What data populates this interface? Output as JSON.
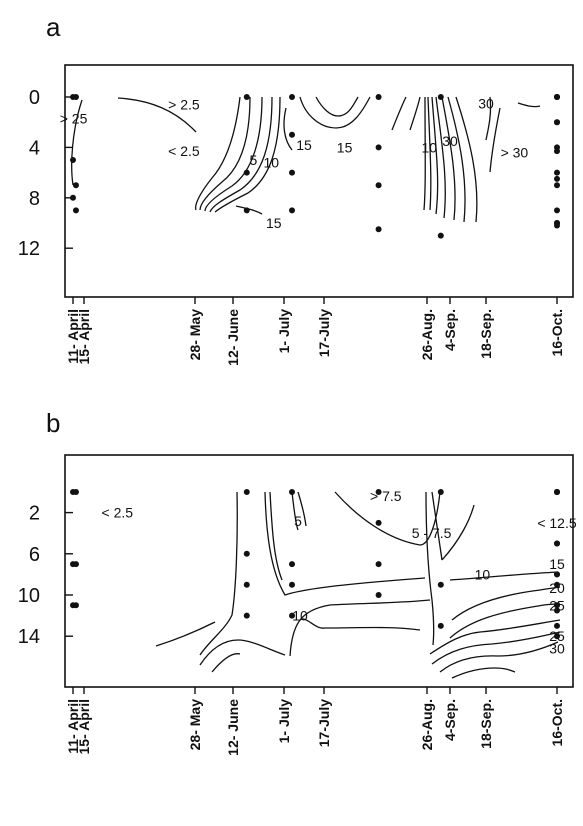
{
  "chart_data": [
    {
      "type": "contour",
      "panel_label": "a",
      "x_tick_labels": [
        "11- April",
        "15- April",
        "28- May",
        "12- June",
        "1- July",
        "17-July",
        "26-Aug.",
        "4-Sep.",
        "18-Sep.",
        "16-Oct."
      ],
      "y_ticks": [
        0,
        4,
        8,
        12
      ],
      "y_tick_labels": [
        "0",
        "4",
        "8",
        "12"
      ],
      "ylim": [
        15,
        -1.2
      ],
      "contour_labels": [
        {
          "text": "> 2.5",
          "x": 1.9,
          "y": 0.6
        },
        {
          "text": "> 25",
          "x": 0.05,
          "y": 1.7
        },
        {
          "text": "< 2.5",
          "x": 1.9,
          "y": 4.3
        },
        {
          "text": "5",
          "x": 3.4,
          "y": 5.0
        },
        {
          "text": "10",
          "x": 3.75,
          "y": 5.2
        },
        {
          "text": "15",
          "x": 4.5,
          "y": 3.8
        },
        {
          "text": "15",
          "x": 5.2,
          "y": 4.0
        },
        {
          "text": "10",
          "x": 6.1,
          "y": 4.0
        },
        {
          "text": "15",
          "x": 3.8,
          "y": 10.0
        },
        {
          "text": "30",
          "x": 8.0,
          "y": 0.5
        },
        {
          "text": "30",
          "x": 7.0,
          "y": 3.5
        },
        {
          "text": "> 30",
          "x": 8.4,
          "y": 4.4
        }
      ],
      "sampling_points": [
        {
          "x": 0,
          "y": 0
        },
        {
          "x": 0,
          "y": 5
        },
        {
          "x": 0,
          "y": 8
        },
        {
          "x": 0.27,
          "y": 0
        },
        {
          "x": 0.27,
          "y": 7
        },
        {
          "x": 0.27,
          "y": 9
        },
        {
          "x": 3.27,
          "y": 0
        },
        {
          "x": 3.27,
          "y": 6
        },
        {
          "x": 3.27,
          "y": 9
        },
        {
          "x": 4.2,
          "y": 0
        },
        {
          "x": 4.2,
          "y": 3
        },
        {
          "x": 4.2,
          "y": 6
        },
        {
          "x": 4.2,
          "y": 9
        },
        {
          "x": 5.53,
          "y": 0
        },
        {
          "x": 5.53,
          "y": 4
        },
        {
          "x": 5.53,
          "y": 7
        },
        {
          "x": 5.53,
          "y": 10.5
        },
        {
          "x": 6.6,
          "y": 0
        },
        {
          "x": 6.6,
          "y": 11
        },
        {
          "x": 9.27,
          "y": 0
        },
        {
          "x": 9.27,
          "y": 2
        },
        {
          "x": 9.27,
          "y": 6
        },
        {
          "x": 9.27,
          "y": 9
        },
        {
          "x": 9.87,
          "y": 0
        },
        {
          "x": 9.87,
          "y": 4
        },
        {
          "x": 9.87,
          "y": 7
        },
        {
          "x": 9.87,
          "y": 10
        },
        {
          "x": 10.8,
          "y": 0
        },
        {
          "x": 10.8,
          "y": 2
        },
        {
          "x": 10.8,
          "y": 6.5
        },
        {
          "x": 10.8,
          "y": 10
        },
        {
          "x": 12.8,
          "y": 0
        },
        {
          "x": 12.8,
          "y": 4.3
        },
        {
          "x": 12.8,
          "y": 10.2
        }
      ]
    },
    {
      "type": "contour",
      "panel_label": "b",
      "x_tick_labels": [
        "11- April",
        "15- April",
        "28- May",
        "12- June",
        "1- July",
        "17-July",
        "26-Aug.",
        "4-Sep.",
        "18-Sep.",
        "16-Oct."
      ],
      "y_ticks": [
        2,
        6,
        10,
        14
      ],
      "y_tick_labels": [
        "2",
        "6",
        "10",
        "14"
      ],
      "ylim": [
        17,
        -4
      ],
      "contour_labels": [
        {
          "text": "< 2.5",
          "x": 1.3,
          "y": 2.0
        },
        {
          "text": "5",
          "x": 4.35,
          "y": 2.8
        },
        {
          "text": "> 7.5",
          "x": 5.6,
          "y": 0.4
        },
        {
          "text": "5 - 7.5",
          "x": 6.2,
          "y": 4.0
        },
        {
          "text": "10",
          "x": 7.9,
          "y": 8.0
        },
        {
          "text": "10",
          "x": 4.4,
          "y": 12.0
        },
        {
          "text": "< 12.5",
          "x": 11.2,
          "y": 3.0
        },
        {
          "text": "15",
          "x": 11.2,
          "y": 7.0
        },
        {
          "text": "20",
          "x": 12.3,
          "y": 9.3
        },
        {
          "text": "25",
          "x": 12.0,
          "y": 11.0
        },
        {
          "text": "25",
          "x": 10.9,
          "y": 14.0
        },
        {
          "text": "30",
          "x": 10.0,
          "y": 15.2
        }
      ],
      "sampling_points": [
        {
          "x": 0,
          "y": 0
        },
        {
          "x": 0,
          "y": 7
        },
        {
          "x": 0,
          "y": 11
        },
        {
          "x": 0.27,
          "y": 0
        },
        {
          "x": 0.27,
          "y": 7
        },
        {
          "x": 0.27,
          "y": 11
        },
        {
          "x": 3.27,
          "y": 0
        },
        {
          "x": 3.27,
          "y": 6
        },
        {
          "x": 3.27,
          "y": 9
        },
        {
          "x": 3.27,
          "y": 12
        },
        {
          "x": 4.2,
          "y": 0
        },
        {
          "x": 4.2,
          "y": 7
        },
        {
          "x": 4.2,
          "y": 9
        },
        {
          "x": 4.2,
          "y": 12
        },
        {
          "x": 5.53,
          "y": 0
        },
        {
          "x": 5.53,
          "y": 3
        },
        {
          "x": 5.53,
          "y": 7
        },
        {
          "x": 5.53,
          "y": 10
        },
        {
          "x": 6.6,
          "y": 0
        },
        {
          "x": 6.6,
          "y": 9
        },
        {
          "x": 6.6,
          "y": 13
        },
        {
          "x": 9.27,
          "y": 0
        },
        {
          "x": 9.27,
          "y": 8
        },
        {
          "x": 9.27,
          "y": 11
        },
        {
          "x": 9.87,
          "y": 0
        },
        {
          "x": 9.87,
          "y": 5
        },
        {
          "x": 9.87,
          "y": 9
        },
        {
          "x": 9.87,
          "y": 13
        },
        {
          "x": 10.8,
          "y": 0
        },
        {
          "x": 10.8,
          "y": 5
        },
        {
          "x": 10.8,
          "y": 11.5
        },
        {
          "x": 10.8,
          "y": 14
        },
        {
          "x": 12.8,
          "y": 0
        },
        {
          "x": 12.8,
          "y": 8
        },
        {
          "x": 12.8,
          "y": 11
        }
      ]
    }
  ]
}
